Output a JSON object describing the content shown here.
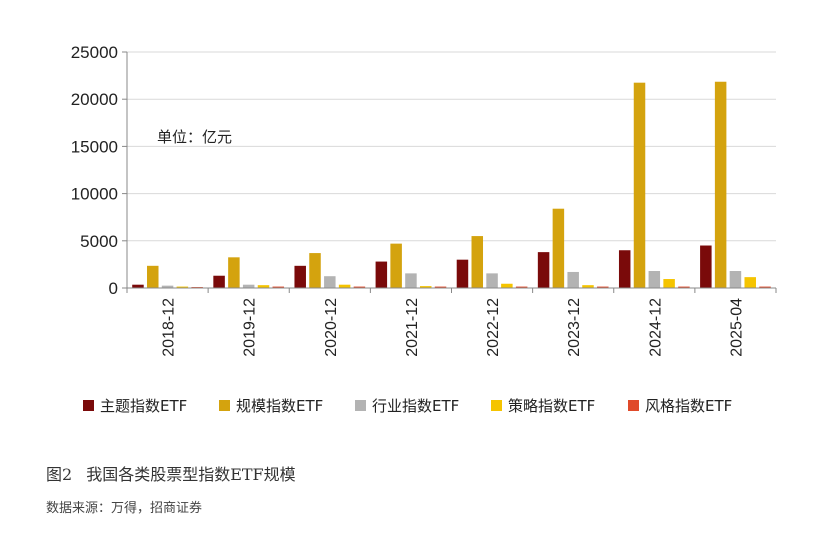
{
  "caption": {
    "figure_no": "图2",
    "title": "我国各类股票型指数ETF规模"
  },
  "source": "数据来源：万得，招商证券",
  "chart_data": {
    "type": "bar",
    "title": "",
    "xlabel": "",
    "ylabel": "",
    "unit_label": "单位：亿元",
    "categories": [
      "2018-12",
      "2019-12",
      "2020-12",
      "2021-12",
      "2022-12",
      "2023-12",
      "2024-12",
      "2025-04"
    ],
    "ylim": [
      0,
      25000
    ],
    "yticks": [
      0,
      5000,
      10000,
      15000,
      20000,
      25000
    ],
    "grid": true,
    "legend_position": "bottom",
    "series": [
      {
        "name": "主题指数ETF",
        "color": "#7a0a0a",
        "values": [
          350,
          1300,
          2350,
          2800,
          3000,
          3800,
          4000,
          4500
        ]
      },
      {
        "name": "规模指数ETF",
        "color": "#d4a30e",
        "values": [
          2350,
          3250,
          3700,
          4700,
          5500,
          8400,
          21750,
          21850
        ]
      },
      {
        "name": "行业指数ETF",
        "color": "#b3b3b3",
        "values": [
          250,
          350,
          1250,
          1550,
          1550,
          1700,
          1800,
          1800
        ]
      },
      {
        "name": "策略指数ETF",
        "color": "#f5c400",
        "values": [
          150,
          300,
          350,
          200,
          450,
          300,
          950,
          1150
        ]
      },
      {
        "name": "风格指数ETF",
        "color": "#e04a2a",
        "values": [
          100,
          150,
          150,
          150,
          150,
          150,
          150,
          150
        ]
      }
    ]
  }
}
